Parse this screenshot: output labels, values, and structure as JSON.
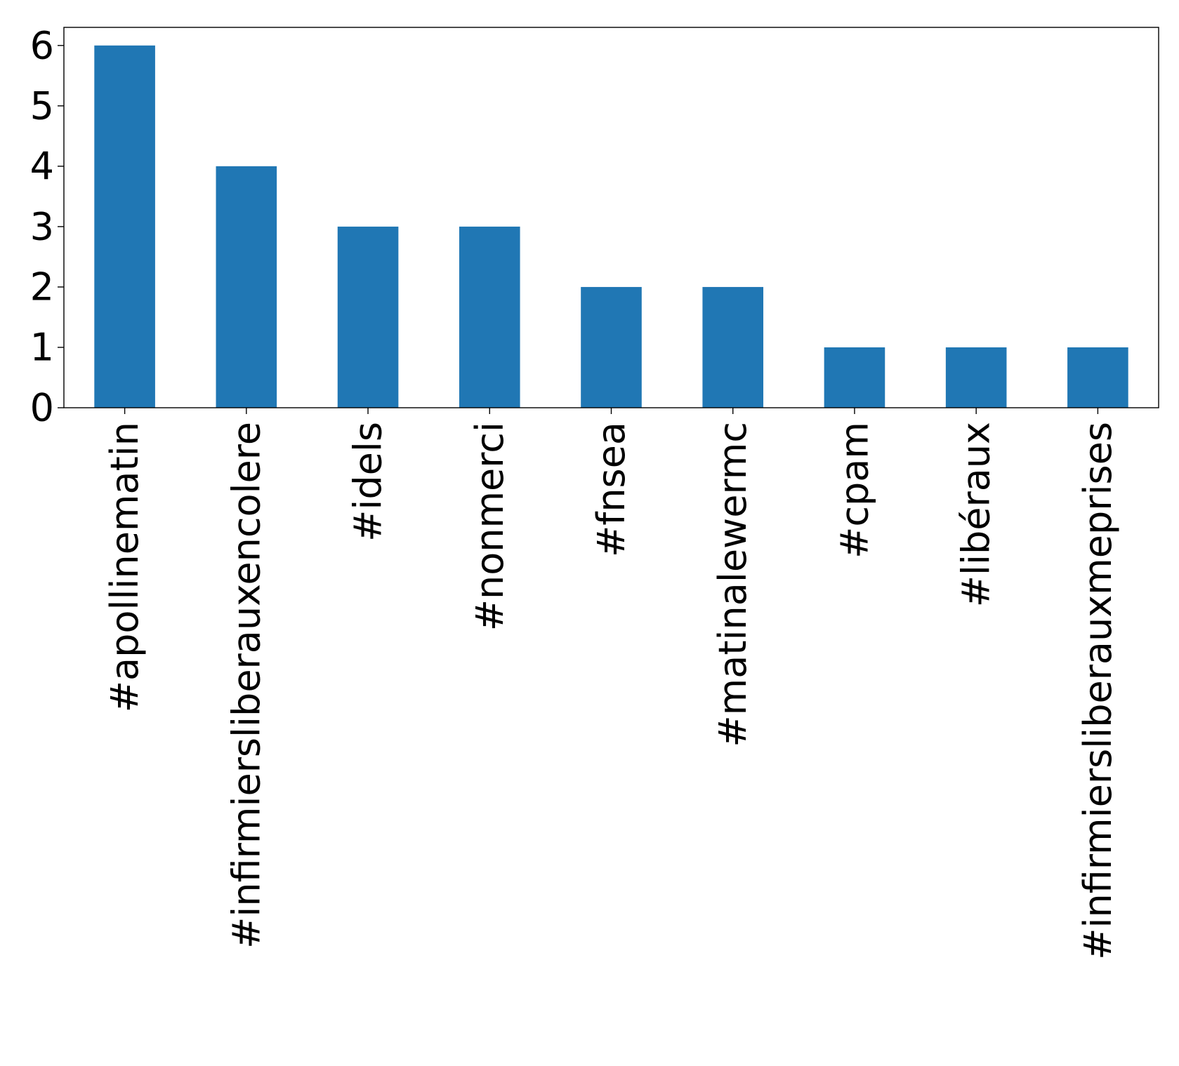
{
  "chart_data": {
    "type": "bar",
    "title": "",
    "xlabel": "",
    "ylabel": "",
    "categories": [
      "#apollinematin",
      "#infirmiersliberauxencolere",
      "#idels",
      "#nonmerci",
      "#fnsea",
      "#matinalewermc",
      "#cpam",
      "#libéraux",
      "#infirmiersliberauxmeprises"
    ],
    "values": [
      6,
      4,
      3,
      3,
      2,
      2,
      1,
      1,
      1
    ],
    "ylim": [
      0,
      6.3
    ],
    "yticks": [
      0,
      1,
      2,
      3,
      4,
      5,
      6
    ],
    "bar_color": "#2077b4",
    "grid": false,
    "legend": "none"
  }
}
